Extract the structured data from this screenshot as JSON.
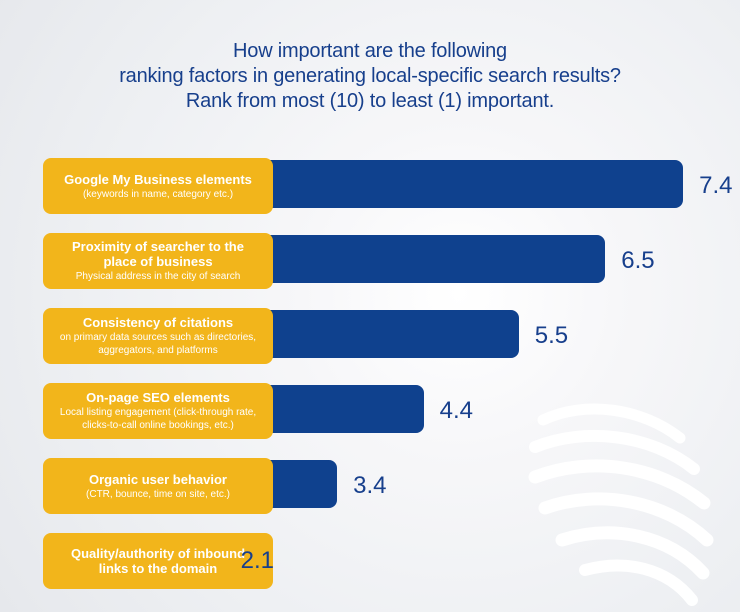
{
  "header": {
    "title_lines": [
      "How important are the following",
      "ranking factors in generating local-specific search results?",
      "Rank from most (10) to least (1) important."
    ]
  },
  "colors": {
    "bar": "#0f418e",
    "label_box": "#f2b51b",
    "title": "#173f8c",
    "value": "#173f8c"
  },
  "chart_data": {
    "type": "bar",
    "orientation": "horizontal",
    "title": "How important are the following ranking factors in generating local-specific search results? Rank from most (10) to least (1) important.",
    "xlabel": "",
    "ylabel": "",
    "xlim": [
      0,
      10
    ],
    "grid": false,
    "legend": "none",
    "categories": [
      {
        "title": "Google My Business elements",
        "subtitle": "(keywords in name, category etc.)"
      },
      {
        "title": "Proximity of searcher to the place of business",
        "subtitle": "Physical address in the city of search"
      },
      {
        "title": "Consistency of citations",
        "subtitle": "on primary data sources such as directories, aggregators, and platforms"
      },
      {
        "title": "On-page SEO elements",
        "subtitle": "Local listing engagement (click-through rate, clicks-to-call online bookings, etc.)"
      },
      {
        "title": "Organic user behavior",
        "subtitle": "(CTR, bounce, time on site, etc.)"
      },
      {
        "title": "Quality/authority of inbound links to the domain",
        "subtitle": ""
      }
    ],
    "values": [
      7.4,
      6.5,
      5.5,
      4.4,
      3.4,
      2.1
    ]
  }
}
